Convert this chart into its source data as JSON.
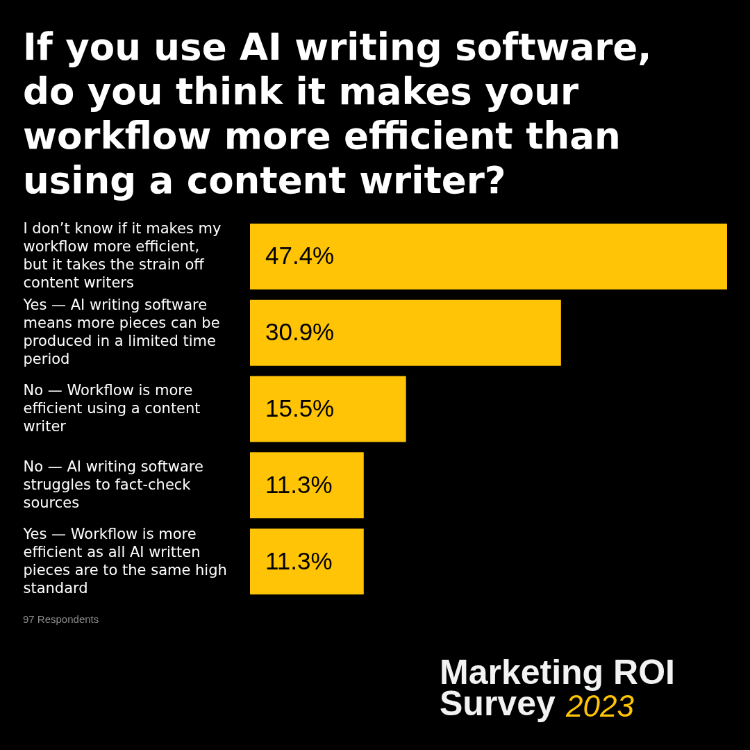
{
  "chart_data": {
    "type": "bar",
    "orientation": "horizontal",
    "title": "If you use AI writing software, do you think it makes your workflow more efficient than using a content writer?",
    "categories": [
      "I don’t know if it makes my workflow more efficient, but it takes the strain off content writers",
      "Yes — AI writing software means more pieces can be produced in a limited time period",
      "No — Workflow is more efficient using a content writer",
      "No — AI writing software struggles to fact-check sources",
      "Yes — Workflow is more efficient as all AI written pieces are to the same high standard"
    ],
    "values": [
      47.4,
      30.9,
      15.5,
      11.3,
      11.3
    ],
    "value_labels": [
      "47.4%",
      "30.9%",
      "15.5%",
      "11.3%",
      "11.3%"
    ],
    "color": "#ffc405",
    "tick_labels": "y",
    "annotations": [
      "97 Respondents",
      "Marketing ROI Survey 2023"
    ]
  }
}
